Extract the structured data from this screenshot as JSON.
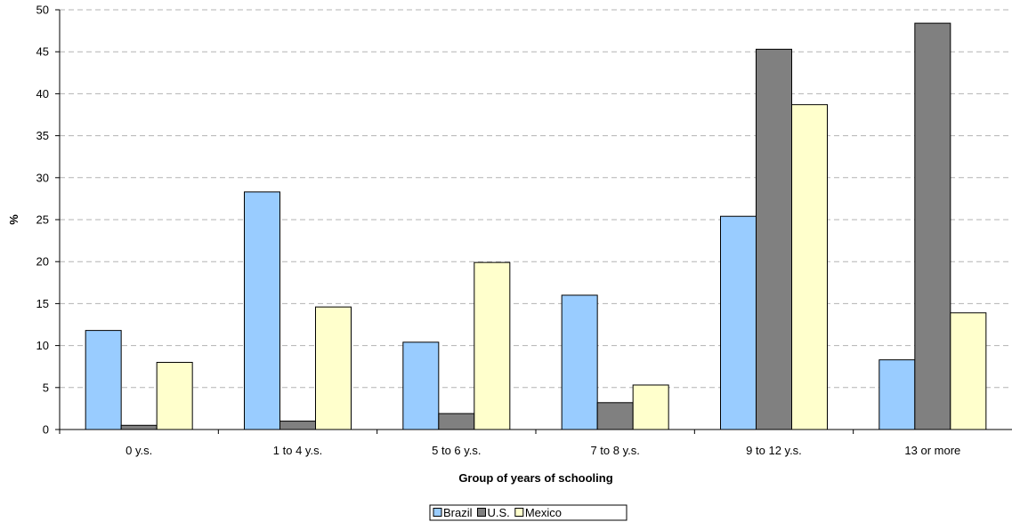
{
  "chart_data": {
    "type": "bar",
    "title": "",
    "xlabel": "Group of years of schooling",
    "ylabel": "%",
    "ylim": [
      0,
      50
    ],
    "yticks": [
      0,
      5,
      10,
      15,
      20,
      25,
      30,
      35,
      40,
      45,
      50
    ],
    "grid": true,
    "legend_position": "bottom",
    "categories": [
      "0 y.s.",
      "1 to 4 y.s.",
      "5 to 6 y.s.",
      "7 to 8 y.s.",
      "9 to 12 y.s.",
      "13 or more"
    ],
    "series": [
      {
        "name": "Brazil",
        "color": "#99ccff",
        "values": [
          11.8,
          28.3,
          10.4,
          16.0,
          25.4,
          8.3
        ]
      },
      {
        "name": "U.S.",
        "color": "#808080",
        "values": [
          0.5,
          1.0,
          1.9,
          3.2,
          45.3,
          48.4
        ]
      },
      {
        "name": "Mexico",
        "color": "#ffffcc",
        "values": [
          8.0,
          14.6,
          19.9,
          5.3,
          38.7,
          13.9
        ]
      }
    ]
  }
}
